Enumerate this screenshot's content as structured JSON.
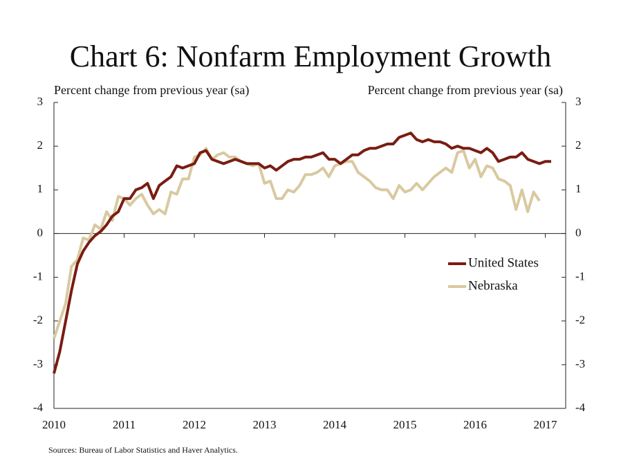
{
  "chart_data": {
    "type": "line",
    "title": "Chart 6: Nonfarm Employment Growth",
    "ylabel": "Percent change from previous year (sa)",
    "y2label": "Percent change from previous year (sa)",
    "source": "Sources: Bureau of Labor Statistics and Haver Analytics.",
    "x": [
      2010,
      2010.083,
      2010.167,
      2010.25,
      2010.333,
      2010.417,
      2010.5,
      2010.583,
      2010.667,
      2010.75,
      2010.833,
      2010.917,
      2011,
      2011.083,
      2011.167,
      2011.25,
      2011.333,
      2011.417,
      2011.5,
      2011.583,
      2011.667,
      2011.75,
      2011.833,
      2011.917,
      2012,
      2012.083,
      2012.167,
      2012.25,
      2012.333,
      2012.417,
      2012.5,
      2012.583,
      2012.667,
      2012.75,
      2012.833,
      2012.917,
      2013,
      2013.083,
      2013.167,
      2013.25,
      2013.333,
      2013.417,
      2013.5,
      2013.583,
      2013.667,
      2013.75,
      2013.833,
      2013.917,
      2014,
      2014.083,
      2014.167,
      2014.25,
      2014.333,
      2014.417,
      2014.5,
      2014.583,
      2014.667,
      2014.75,
      2014.833,
      2014.917,
      2015,
      2015.083,
      2015.167,
      2015.25,
      2015.333,
      2015.417,
      2015.5,
      2015.583,
      2015.667,
      2015.75,
      2015.833,
      2015.917,
      2016,
      2016.083,
      2016.167,
      2016.25,
      2016.333,
      2016.417,
      2016.5,
      2016.583,
      2016.667,
      2016.75,
      2016.833,
      2016.917,
      2017,
      2017.083
    ],
    "series": [
      {
        "name": "United States",
        "color": "#7a1c12",
        "values": [
          -3.2,
          -2.7,
          -2.0,
          -1.3,
          -0.7,
          -0.4,
          -0.2,
          -0.05,
          0.05,
          0.2,
          0.4,
          0.5,
          0.8,
          0.8,
          1.0,
          1.05,
          1.15,
          0.8,
          1.1,
          1.2,
          1.3,
          1.55,
          1.5,
          1.55,
          1.6,
          1.85,
          1.9,
          1.7,
          1.65,
          1.6,
          1.65,
          1.7,
          1.65,
          1.6,
          1.6,
          1.6,
          1.5,
          1.55,
          1.45,
          1.55,
          1.65,
          1.7,
          1.7,
          1.75,
          1.75,
          1.8,
          1.85,
          1.7,
          1.7,
          1.6,
          1.7,
          1.8,
          1.8,
          1.9,
          1.95,
          1.95,
          2.0,
          2.05,
          2.05,
          2.2,
          2.25,
          2.3,
          2.15,
          2.1,
          2.15,
          2.1,
          2.1,
          2.05,
          1.95,
          2.0,
          1.95,
          1.95,
          1.9,
          1.85,
          1.95,
          1.85,
          1.65,
          1.7,
          1.75,
          1.75,
          1.85,
          1.7,
          1.65,
          1.6,
          1.65,
          1.65
        ]
      },
      {
        "name": "Nebraska",
        "color": "#d9c9a0",
        "values": [
          -2.4,
          -2.0,
          -1.6,
          -0.75,
          -0.6,
          -0.1,
          -0.15,
          0.2,
          0.1,
          0.5,
          0.3,
          0.85,
          0.8,
          0.65,
          0.8,
          0.9,
          0.65,
          0.45,
          0.55,
          0.45,
          0.95,
          0.9,
          1.25,
          1.25,
          1.75,
          1.8,
          1.95,
          1.7,
          1.8,
          1.85,
          1.75,
          1.75,
          1.65,
          1.6,
          1.55,
          1.6,
          1.15,
          1.2,
          0.8,
          0.8,
          1.0,
          0.95,
          1.1,
          1.35,
          1.35,
          1.4,
          1.5,
          1.3,
          1.55,
          1.6,
          1.65,
          1.65,
          1.4,
          1.3,
          1.2,
          1.05,
          1.0,
          1.0,
          0.8,
          1.1,
          0.95,
          1.0,
          1.15,
          1.0,
          1.15,
          1.3,
          1.4,
          1.5,
          1.4,
          1.85,
          1.9,
          1.5,
          1.7,
          1.3,
          1.55,
          1.5,
          1.25,
          1.2,
          1.1,
          0.55,
          1.0,
          0.5,
          0.95,
          0.75,
          null,
          null
        ]
      }
    ],
    "xlim": [
      2010,
      2017.29
    ],
    "xticks": [
      2010,
      2011,
      2012,
      2013,
      2014,
      2015,
      2016,
      2017
    ],
    "ylim": [
      -4,
      3
    ],
    "yticks": [
      -4,
      -3,
      -2,
      -1,
      0,
      1,
      2,
      3
    ],
    "y2lim": [
      -4,
      3
    ],
    "y2ticks": [
      -4,
      -3,
      -2,
      -1,
      0,
      1,
      2,
      3
    ],
    "legend": "center-right"
  }
}
